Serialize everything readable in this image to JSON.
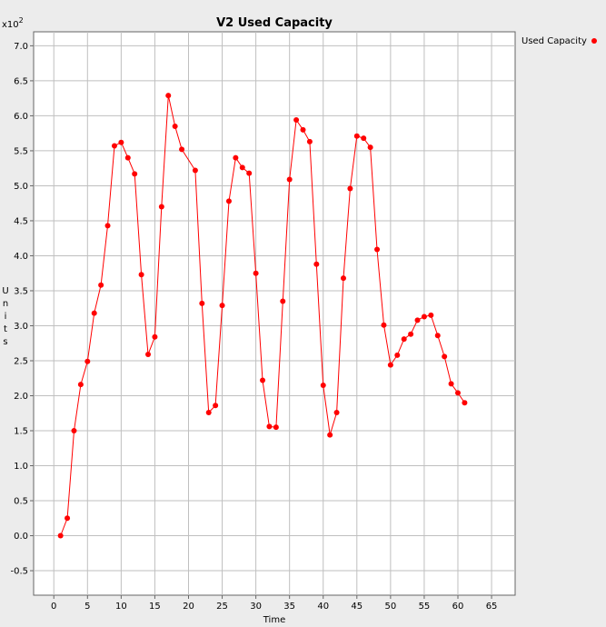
{
  "chart_data": {
    "type": "line",
    "title": "V2 Used Capacity",
    "xlabel": "Time",
    "ylabel": "Units",
    "ylabel_chars": [
      "U",
      "n",
      "i",
      "t",
      "s"
    ],
    "multiplier_base": "x10",
    "multiplier_exp": "2",
    "xlim": [
      -3,
      68.5
    ],
    "ylim": [
      -0.85,
      7.2
    ],
    "x_ticks": [
      0,
      5,
      10,
      15,
      20,
      25,
      30,
      35,
      40,
      45,
      50,
      55,
      60,
      65
    ],
    "x_tick_labels": [
      "0",
      "5",
      "10",
      "15",
      "20",
      "25",
      "30",
      "35",
      "40",
      "45",
      "50",
      "55",
      "60",
      "65"
    ],
    "y_ticks": [
      -0.5,
      0.0,
      0.5,
      1.0,
      1.5,
      2.0,
      2.5,
      3.0,
      3.5,
      4.0,
      4.5,
      5.0,
      5.5,
      6.0,
      6.5,
      7.0
    ],
    "y_tick_labels": [
      "-0.5",
      "0.0",
      "0.5",
      "1.0",
      "1.5",
      "2.0",
      "2.5",
      "3.0",
      "3.5",
      "4.0",
      "4.5",
      "5.0",
      "5.5",
      "6.0",
      "6.5",
      "7.0"
    ],
    "grid": true,
    "legend_position": "top-right",
    "series_color": "#ff0000",
    "series": [
      {
        "name": "Used Capacity",
        "x": [
          1,
          2,
          3,
          4,
          5,
          6,
          7,
          8,
          9,
          10,
          11,
          12,
          13,
          14,
          15,
          16,
          17,
          18,
          19,
          21,
          22,
          23,
          24,
          25,
          26,
          27,
          28,
          29,
          30,
          31,
          32,
          33,
          34,
          35,
          36,
          37,
          38,
          39,
          40,
          41,
          42,
          43,
          44,
          45,
          46,
          47,
          48,
          49,
          50,
          51,
          52,
          53,
          54,
          55,
          56,
          57,
          58,
          59,
          60,
          61
        ],
        "y": [
          0.0,
          0.25,
          1.5,
          2.16,
          2.49,
          3.18,
          3.58,
          4.43,
          5.57,
          5.62,
          5.4,
          5.17,
          3.73,
          2.59,
          2.84,
          4.7,
          6.29,
          5.85,
          5.52,
          5.22,
          3.32,
          1.76,
          1.86,
          3.29,
          4.78,
          5.4,
          5.26,
          5.18,
          3.75,
          2.22,
          1.56,
          1.55,
          3.35,
          5.09,
          5.94,
          5.8,
          5.63,
          3.88,
          2.15,
          1.44,
          1.76,
          3.68,
          4.96,
          5.71,
          5.68,
          5.55,
          4.09,
          3.01,
          2.44,
          2.58,
          2.81,
          2.88,
          3.08,
          3.13,
          3.15,
          2.86,
          2.56,
          2.17,
          2.04,
          1.9
        ]
      }
    ]
  }
}
